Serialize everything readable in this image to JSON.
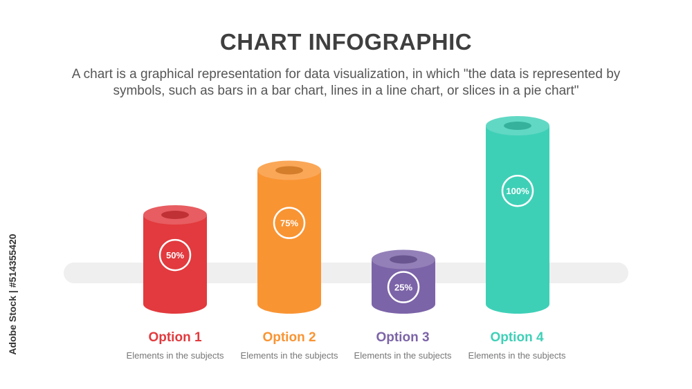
{
  "header": {
    "title": "CHART INFOGRAPHIC",
    "subtitle": "A chart is a graphical representation for data visualization, in which \"the data is represented by symbols, such as bars in a bar chart, lines in a line chart, or slices in a pie chart\""
  },
  "side_id": "Adobe Stock | #514355420",
  "options": [
    {
      "label": "Option 1",
      "description": "Elements in the subjects",
      "color": "#e23a3e"
    },
    {
      "label": "Option 2",
      "description": "Elements in the subjects",
      "color": "#f99433"
    },
    {
      "label": "Option 3",
      "description": "Elements in the subjects",
      "color": "#7c64a8"
    },
    {
      "label": "Option 4",
      "description": "Elements in the subjects",
      "color": "#3ed0b7"
    }
  ],
  "chart_data": {
    "type": "bar",
    "categories": [
      "Option 1",
      "Option 2",
      "Option 3",
      "Option 4"
    ],
    "values": [
      50,
      75,
      25,
      100
    ],
    "data_labels": [
      "50%",
      "75%",
      "25%",
      "100%"
    ],
    "ylim": [
      0,
      100
    ],
    "colors": [
      "#e23a3e",
      "#f99433",
      "#7c64a8",
      "#3ed0b7"
    ]
  }
}
